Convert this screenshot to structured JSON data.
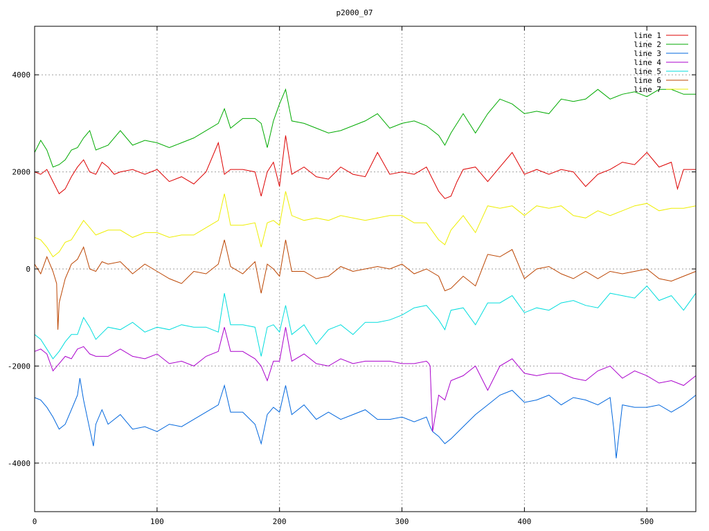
{
  "chart_data": {
    "type": "line",
    "title": "p2000_07",
    "xlabel": "",
    "ylabel": "",
    "xlim": [
      0,
      540
    ],
    "ylim": [
      -5000,
      5000
    ],
    "x_ticks": [
      0,
      100,
      200,
      300,
      400,
      500
    ],
    "y_ticks": [
      -4000,
      -2000,
      0,
      2000,
      4000
    ],
    "x_tick_labels": [
      "0",
      "100",
      "200",
      "300",
      "400",
      "500"
    ],
    "y_tick_labels": [
      "-4000",
      "-2000",
      "0",
      "2000",
      "4000"
    ],
    "grid": true,
    "legend_position": "top-right",
    "series": [
      {
        "name": "line 1",
        "color": "#dd0000",
        "x": [
          0,
          5,
          10,
          15,
          20,
          25,
          30,
          35,
          40,
          45,
          50,
          55,
          60,
          65,
          70,
          80,
          90,
          100,
          110,
          120,
          130,
          140,
          150,
          155,
          160,
          170,
          180,
          185,
          190,
          195,
          200,
          205,
          210,
          220,
          230,
          240,
          250,
          260,
          270,
          280,
          290,
          300,
          310,
          320,
          330,
          335,
          340,
          345,
          350,
          360,
          370,
          380,
          390,
          400,
          410,
          420,
          430,
          440,
          450,
          460,
          470,
          480,
          490,
          500,
          510,
          520,
          525,
          530,
          540
        ],
        "y": [
          2000,
          1950,
          2050,
          1800,
          1550,
          1650,
          1900,
          2100,
          2250,
          2000,
          1950,
          2200,
          2100,
          1950,
          2000,
          2050,
          1950,
          2050,
          1800,
          1900,
          1750,
          2000,
          2600,
          1950,
          2050,
          2050,
          2000,
          1500,
          2000,
          2200,
          1700,
          2750,
          1950,
          2100,
          1900,
          1850,
          2100,
          1950,
          1900,
          2400,
          1950,
          2000,
          1950,
          2100,
          1600,
          1450,
          1500,
          1800,
          2050,
          2100,
          1800,
          2100,
          2400,
          1950,
          2050,
          1950,
          2050,
          2000,
          1700,
          1950,
          2050,
          2200,
          2150,
          2400,
          2100,
          2200,
          1650,
          2050,
          2050
        ]
      },
      {
        "name": "line 2",
        "color": "#00aa00",
        "x": [
          0,
          5,
          10,
          15,
          20,
          25,
          30,
          35,
          40,
          45,
          50,
          60,
          70,
          80,
          90,
          100,
          110,
          120,
          130,
          140,
          150,
          155,
          160,
          170,
          180,
          185,
          190,
          195,
          200,
          205,
          210,
          220,
          230,
          240,
          250,
          260,
          270,
          280,
          290,
          300,
          310,
          320,
          330,
          335,
          340,
          350,
          360,
          370,
          380,
          390,
          400,
          410,
          420,
          430,
          440,
          450,
          460,
          470,
          480,
          490,
          500,
          510,
          520,
          530,
          540
        ],
        "y": [
          2400,
          2650,
          2450,
          2100,
          2150,
          2250,
          2450,
          2500,
          2700,
          2850,
          2450,
          2550,
          2850,
          2550,
          2650,
          2600,
          2500,
          2600,
          2700,
          2850,
          3000,
          3300,
          2900,
          3100,
          3100,
          3000,
          2500,
          3050,
          3400,
          3700,
          3050,
          3000,
          2900,
          2800,
          2850,
          2950,
          3050,
          3200,
          2900,
          3000,
          3050,
          2950,
          2750,
          2550,
          2800,
          3200,
          2800,
          3200,
          3500,
          3400,
          3200,
          3250,
          3200,
          3500,
          3450,
          3500,
          3700,
          3500,
          3600,
          3650,
          3550,
          3700,
          3700,
          3600,
          3600
        ]
      },
      {
        "name": "line 3",
        "color": "#0066dd",
        "x": [
          0,
          5,
          10,
          15,
          20,
          25,
          30,
          35,
          37,
          40,
          45,
          48,
          50,
          55,
          60,
          70,
          80,
          90,
          100,
          110,
          120,
          130,
          140,
          150,
          155,
          160,
          170,
          180,
          185,
          190,
          195,
          200,
          205,
          210,
          220,
          230,
          240,
          250,
          260,
          270,
          280,
          290,
          300,
          310,
          320,
          323,
          325,
          330,
          335,
          340,
          350,
          360,
          370,
          380,
          390,
          400,
          410,
          420,
          430,
          440,
          450,
          460,
          470,
          473,
          475,
          480,
          490,
          500,
          510,
          520,
          530,
          540
        ],
        "y": [
          -2650,
          -2700,
          -2850,
          -3050,
          -3300,
          -3200,
          -2900,
          -2600,
          -2250,
          -2700,
          -3300,
          -3650,
          -3200,
          -2900,
          -3200,
          -3000,
          -3300,
          -3250,
          -3350,
          -3200,
          -3250,
          -3100,
          -2950,
          -2800,
          -2400,
          -2950,
          -2950,
          -3200,
          -3600,
          -3000,
          -2850,
          -2950,
          -2400,
          -3000,
          -2800,
          -3100,
          -2950,
          -3100,
          -3000,
          -2900,
          -3100,
          -3100,
          -3050,
          -3150,
          -3050,
          -3250,
          -3350,
          -3450,
          -3600,
          -3500,
          -3250,
          -3000,
          -2800,
          -2600,
          -2500,
          -2750,
          -2700,
          -2600,
          -2800,
          -2650,
          -2700,
          -2800,
          -2650,
          -3300,
          -3900,
          -2800,
          -2850,
          -2850,
          -2800,
          -2950,
          -2800,
          -2600
        ]
      },
      {
        "name": "line 4",
        "color": "#aa00cc",
        "x": [
          0,
          5,
          10,
          15,
          20,
          25,
          30,
          35,
          40,
          45,
          50,
          60,
          70,
          80,
          90,
          100,
          110,
          120,
          130,
          140,
          150,
          155,
          160,
          170,
          180,
          185,
          190,
          195,
          200,
          205,
          210,
          220,
          230,
          240,
          250,
          260,
          270,
          280,
          290,
          300,
          310,
          320,
          322,
          323,
          325,
          330,
          335,
          340,
          350,
          360,
          370,
          380,
          390,
          400,
          410,
          420,
          430,
          440,
          450,
          460,
          470,
          480,
          490,
          500,
          510,
          520,
          530,
          540
        ],
        "y": [
          -1700,
          -1650,
          -1750,
          -2100,
          -1950,
          -1800,
          -1850,
          -1650,
          -1600,
          -1750,
          -1800,
          -1800,
          -1650,
          -1800,
          -1850,
          -1750,
          -1950,
          -1900,
          -2000,
          -1800,
          -1700,
          -1200,
          -1700,
          -1700,
          -1850,
          -2000,
          -2300,
          -1900,
          -1900,
          -1200,
          -1900,
          -1750,
          -1950,
          -2000,
          -1850,
          -1950,
          -1900,
          -1900,
          -1900,
          -1950,
          -1950,
          -1900,
          -1950,
          -2000,
          -3350,
          -2600,
          -2700,
          -2300,
          -2200,
          -2000,
          -2500,
          -2000,
          -1850,
          -2150,
          -2200,
          -2150,
          -2150,
          -2250,
          -2300,
          -2100,
          -2000,
          -2250,
          -2100,
          -2200,
          -2350,
          -2300,
          -2400,
          -2200
        ]
      },
      {
        "name": "line 5",
        "color": "#00dddd",
        "x": [
          0,
          5,
          10,
          15,
          20,
          25,
          30,
          35,
          40,
          45,
          50,
          60,
          70,
          80,
          90,
          100,
          110,
          120,
          130,
          140,
          150,
          155,
          160,
          170,
          180,
          185,
          190,
          195,
          200,
          205,
          210,
          220,
          230,
          240,
          250,
          260,
          270,
          280,
          290,
          300,
          310,
          320,
          330,
          335,
          340,
          350,
          360,
          370,
          380,
          390,
          400,
          410,
          420,
          430,
          440,
          450,
          460,
          470,
          480,
          490,
          500,
          510,
          520,
          530,
          540
        ],
        "y": [
          -1350,
          -1450,
          -1650,
          -1850,
          -1700,
          -1500,
          -1350,
          -1350,
          -1000,
          -1200,
          -1450,
          -1200,
          -1250,
          -1100,
          -1300,
          -1200,
          -1250,
          -1150,
          -1200,
          -1200,
          -1300,
          -500,
          -1150,
          -1150,
          -1200,
          -1800,
          -1200,
          -1150,
          -1300,
          -750,
          -1350,
          -1150,
          -1550,
          -1250,
          -1150,
          -1350,
          -1100,
          -1100,
          -1050,
          -950,
          -800,
          -750,
          -1050,
          -1250,
          -850,
          -800,
          -1150,
          -700,
          -700,
          -550,
          -900,
          -800,
          -850,
          -700,
          -650,
          -750,
          -800,
          -500,
          -550,
          -600,
          -350,
          -650,
          -550,
          -850,
          -500
        ]
      },
      {
        "name": "line 6",
        "color": "#bb4400",
        "x": [
          0,
          5,
          10,
          15,
          18,
          19,
          20,
          25,
          30,
          35,
          40,
          45,
          50,
          55,
          60,
          70,
          80,
          90,
          100,
          110,
          120,
          130,
          140,
          150,
          155,
          160,
          170,
          180,
          185,
          190,
          195,
          200,
          205,
          210,
          220,
          230,
          240,
          250,
          260,
          270,
          280,
          290,
          300,
          310,
          320,
          330,
          335,
          340,
          350,
          360,
          370,
          380,
          390,
          400,
          410,
          420,
          430,
          440,
          450,
          460,
          470,
          480,
          490,
          500,
          510,
          520,
          530,
          540
        ],
        "y": [
          100,
          -100,
          250,
          -50,
          -300,
          -1250,
          -700,
          -200,
          100,
          200,
          450,
          0,
          -50,
          150,
          100,
          150,
          -100,
          100,
          -50,
          -200,
          -300,
          -50,
          -100,
          100,
          600,
          50,
          -100,
          150,
          -500,
          100,
          0,
          -150,
          600,
          -50,
          -50,
          -200,
          -150,
          50,
          -50,
          0,
          50,
          0,
          100,
          -100,
          0,
          -150,
          -450,
          -400,
          -150,
          -350,
          300,
          250,
          400,
          -200,
          0,
          50,
          -100,
          -200,
          -50,
          -200,
          -50,
          -100,
          -50,
          0,
          -200,
          -250,
          -150,
          -50
        ]
      },
      {
        "name": "line 7",
        "color": "#eeee00",
        "x": [
          0,
          5,
          10,
          15,
          20,
          25,
          30,
          35,
          40,
          45,
          50,
          60,
          70,
          80,
          90,
          100,
          110,
          120,
          130,
          140,
          150,
          155,
          160,
          170,
          180,
          185,
          190,
          195,
          200,
          205,
          210,
          220,
          230,
          240,
          250,
          260,
          270,
          280,
          290,
          300,
          310,
          320,
          330,
          335,
          340,
          350,
          360,
          370,
          380,
          390,
          400,
          410,
          420,
          430,
          440,
          450,
          460,
          470,
          480,
          490,
          500,
          510,
          520,
          530,
          540
        ],
        "y": [
          650,
          600,
          450,
          250,
          350,
          550,
          600,
          800,
          1000,
          850,
          700,
          800,
          800,
          650,
          750,
          750,
          650,
          700,
          700,
          850,
          1000,
          1550,
          900,
          900,
          950,
          450,
          950,
          1000,
          900,
          1600,
          1100,
          1000,
          1050,
          1000,
          1100,
          1050,
          1000,
          1050,
          1100,
          1100,
          950,
          950,
          600,
          500,
          800,
          1100,
          750,
          1300,
          1250,
          1300,
          1100,
          1300,
          1250,
          1300,
          1100,
          1050,
          1200,
          1100,
          1200,
          1300,
          1350,
          1200,
          1250,
          1250,
          1300
        ]
      }
    ]
  }
}
